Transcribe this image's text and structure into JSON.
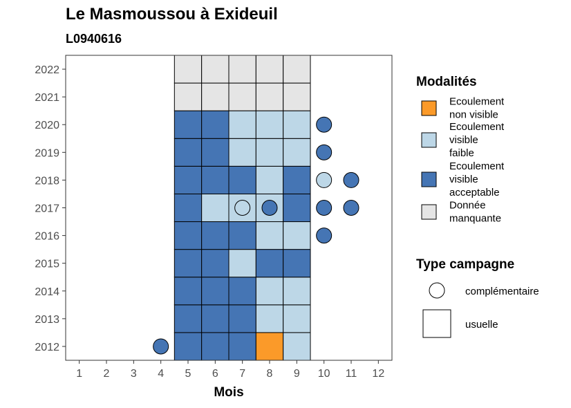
{
  "chart_data": {
    "type": "heatmap",
    "title": "Le Masmoussou à Exideuil",
    "subtitle": "L0940616",
    "xlabel": "Mois",
    "ylabel": "",
    "x_ticks": [
      1,
      2,
      3,
      4,
      5,
      6,
      7,
      8,
      9,
      10,
      11,
      12
    ],
    "y_ticks": [
      2012,
      2013,
      2014,
      2015,
      2016,
      2017,
      2018,
      2019,
      2020,
      2021,
      2022
    ],
    "xlim": [
      0.5,
      12.5
    ],
    "ylim": [
      2011.5,
      2022.5
    ],
    "grid": false,
    "modalites": [
      {
        "key": "nonvisible",
        "label_lines": [
          "Ecoulement",
          "non visible"
        ],
        "color": "#fb9a29"
      },
      {
        "key": "faible",
        "label_lines": [
          "Ecoulement",
          "visible",
          "faible"
        ],
        "color": "#bdd7e7"
      },
      {
        "key": "acceptable",
        "label_lines": [
          "Ecoulement",
          "visible",
          "acceptable"
        ],
        "color": "#4575b4"
      },
      {
        "key": "manquante",
        "label_lines": [
          "Donnée",
          "manquante"
        ],
        "color": "#e5e5e5"
      }
    ],
    "legend_modalites_title": "Modalités",
    "legend_campagne_title": "Type campagne",
    "campagnes": [
      {
        "key": "complementaire",
        "label": "complémentaire",
        "shape": "circle"
      },
      {
        "key": "usuelle",
        "label": "usuelle",
        "shape": "square"
      }
    ],
    "legend_position": "right",
    "usuelle": [
      {
        "year": 2012,
        "month": 5,
        "modalite": "acceptable"
      },
      {
        "year": 2012,
        "month": 6,
        "modalite": "acceptable"
      },
      {
        "year": 2012,
        "month": 7,
        "modalite": "acceptable"
      },
      {
        "year": 2012,
        "month": 8,
        "modalite": "nonvisible"
      },
      {
        "year": 2012,
        "month": 9,
        "modalite": "faible"
      },
      {
        "year": 2013,
        "month": 5,
        "modalite": "acceptable"
      },
      {
        "year": 2013,
        "month": 6,
        "modalite": "acceptable"
      },
      {
        "year": 2013,
        "month": 7,
        "modalite": "acceptable"
      },
      {
        "year": 2013,
        "month": 8,
        "modalite": "faible"
      },
      {
        "year": 2013,
        "month": 9,
        "modalite": "faible"
      },
      {
        "year": 2014,
        "month": 5,
        "modalite": "acceptable"
      },
      {
        "year": 2014,
        "month": 6,
        "modalite": "acceptable"
      },
      {
        "year": 2014,
        "month": 7,
        "modalite": "acceptable"
      },
      {
        "year": 2014,
        "month": 8,
        "modalite": "faible"
      },
      {
        "year": 2014,
        "month": 9,
        "modalite": "faible"
      },
      {
        "year": 2015,
        "month": 5,
        "modalite": "acceptable"
      },
      {
        "year": 2015,
        "month": 6,
        "modalite": "acceptable"
      },
      {
        "year": 2015,
        "month": 7,
        "modalite": "faible"
      },
      {
        "year": 2015,
        "month": 8,
        "modalite": "acceptable"
      },
      {
        "year": 2015,
        "month": 9,
        "modalite": "acceptable"
      },
      {
        "year": 2016,
        "month": 5,
        "modalite": "acceptable"
      },
      {
        "year": 2016,
        "month": 6,
        "modalite": "acceptable"
      },
      {
        "year": 2016,
        "month": 7,
        "modalite": "acceptable"
      },
      {
        "year": 2016,
        "month": 8,
        "modalite": "faible"
      },
      {
        "year": 2016,
        "month": 9,
        "modalite": "faible"
      },
      {
        "year": 2017,
        "month": 5,
        "modalite": "acceptable"
      },
      {
        "year": 2017,
        "month": 6,
        "modalite": "faible"
      },
      {
        "year": 2017,
        "month": 7,
        "modalite": "faible"
      },
      {
        "year": 2017,
        "month": 8,
        "modalite": "faible"
      },
      {
        "year": 2017,
        "month": 9,
        "modalite": "acceptable"
      },
      {
        "year": 2018,
        "month": 5,
        "modalite": "acceptable"
      },
      {
        "year": 2018,
        "month": 6,
        "modalite": "acceptable"
      },
      {
        "year": 2018,
        "month": 7,
        "modalite": "acceptable"
      },
      {
        "year": 2018,
        "month": 8,
        "modalite": "faible"
      },
      {
        "year": 2018,
        "month": 9,
        "modalite": "acceptable"
      },
      {
        "year": 2019,
        "month": 5,
        "modalite": "acceptable"
      },
      {
        "year": 2019,
        "month": 6,
        "modalite": "acceptable"
      },
      {
        "year": 2019,
        "month": 7,
        "modalite": "faible"
      },
      {
        "year": 2019,
        "month": 8,
        "modalite": "faible"
      },
      {
        "year": 2019,
        "month": 9,
        "modalite": "faible"
      },
      {
        "year": 2020,
        "month": 5,
        "modalite": "acceptable"
      },
      {
        "year": 2020,
        "month": 6,
        "modalite": "acceptable"
      },
      {
        "year": 2020,
        "month": 7,
        "modalite": "faible"
      },
      {
        "year": 2020,
        "month": 8,
        "modalite": "faible"
      },
      {
        "year": 2020,
        "month": 9,
        "modalite": "faible"
      },
      {
        "year": 2021,
        "month": 5,
        "modalite": "manquante"
      },
      {
        "year": 2021,
        "month": 6,
        "modalite": "manquante"
      },
      {
        "year": 2021,
        "month": 7,
        "modalite": "manquante"
      },
      {
        "year": 2021,
        "month": 8,
        "modalite": "manquante"
      },
      {
        "year": 2021,
        "month": 9,
        "modalite": "manquante"
      },
      {
        "year": 2022,
        "month": 5,
        "modalite": "manquante"
      },
      {
        "year": 2022,
        "month": 6,
        "modalite": "manquante"
      },
      {
        "year": 2022,
        "month": 7,
        "modalite": "manquante"
      },
      {
        "year": 2022,
        "month": 8,
        "modalite": "manquante"
      },
      {
        "year": 2022,
        "month": 9,
        "modalite": "manquante"
      }
    ],
    "complementaire": [
      {
        "year": 2012,
        "month": 4,
        "modalite": "acceptable"
      },
      {
        "year": 2016,
        "month": 10,
        "modalite": "acceptable"
      },
      {
        "year": 2017,
        "month": 7,
        "modalite": "faible"
      },
      {
        "year": 2017,
        "month": 8,
        "modalite": "acceptable"
      },
      {
        "year": 2017,
        "month": 10,
        "modalite": "acceptable"
      },
      {
        "year": 2017,
        "month": 11,
        "modalite": "acceptable"
      },
      {
        "year": 2018,
        "month": 10,
        "modalite": "faible"
      },
      {
        "year": 2018,
        "month": 11,
        "modalite": "acceptable"
      },
      {
        "year": 2019,
        "month": 10,
        "modalite": "acceptable"
      },
      {
        "year": 2020,
        "month": 10,
        "modalite": "acceptable"
      }
    ]
  }
}
